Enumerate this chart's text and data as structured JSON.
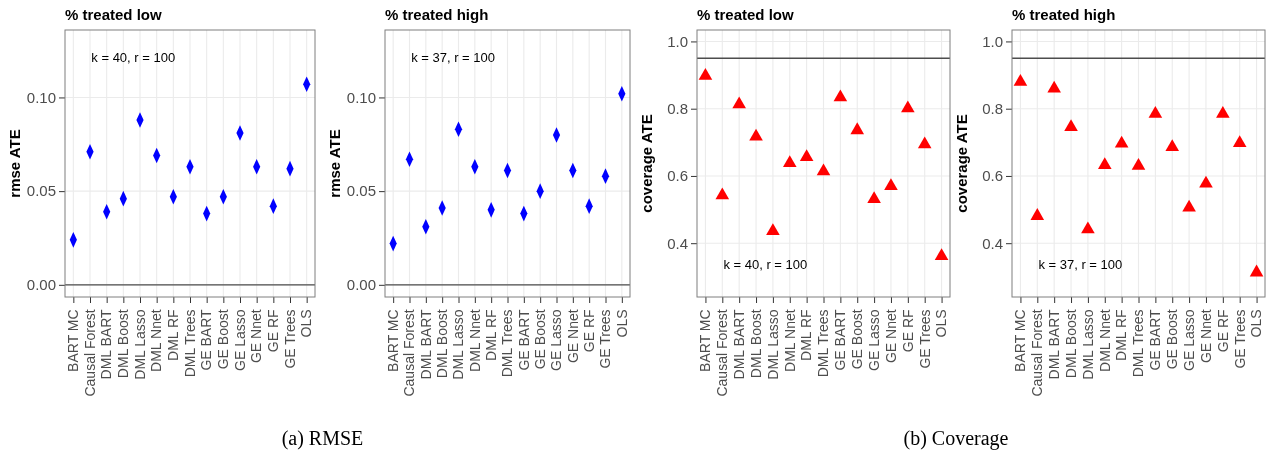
{
  "chart_data": [
    {
      "type": "scatter",
      "title": "% treated low",
      "ylabel": "rmse ATE",
      "categories": [
        "BART MC",
        "Causal Forest",
        "DML BART",
        "DML Boost",
        "DML Lasso",
        "DML Nnet",
        "DML RF",
        "DML Trees",
        "GE BART",
        "GE Boost",
        "GE Lasso",
        "GE Nnet",
        "GE RF",
        "GE Trees",
        "OLS"
      ],
      "series": [
        {
          "color": "#0000ff",
          "values": [
            0.024,
            0.071,
            0.039,
            0.046,
            0.088,
            0.069,
            0.047,
            0.063,
            0.038,
            0.047,
            0.081,
            0.063,
            0.042,
            0.062,
            0.107
          ]
        }
      ],
      "ylim": [
        -0.0065,
        0.136
      ],
      "yticks": [
        {
          "value": 0,
          "label": "0.00"
        },
        {
          "value": 0.05,
          "label": "0.05"
        },
        {
          "value": 0.1,
          "label": "0.10"
        }
      ],
      "grid": true,
      "marker": "diamond",
      "ref_lines": [
        {
          "axis": "y",
          "value": 0,
          "color": "#4d4d4d"
        }
      ],
      "annotations": [
        "k = 40, r = 100",
        "(a) RMSE"
      ]
    },
    {
      "type": "scatter",
      "title": "% treated high",
      "ylabel": "rmse ATE",
      "categories": [
        "BART MC",
        "Causal Forest",
        "DML BART",
        "DML Boost",
        "DML Lasso",
        "DML Nnet",
        "DML RF",
        "DML Trees",
        "GE BART",
        "GE Boost",
        "GE Lasso",
        "GE Nnet",
        "GE RF",
        "GE Trees",
        "OLS"
      ],
      "series": [
        {
          "color": "#0000ff",
          "values": [
            0.022,
            0.067,
            0.031,
            0.041,
            0.083,
            0.063,
            0.04,
            0.061,
            0.038,
            0.05,
            0.08,
            0.061,
            0.042,
            0.058,
            0.102
          ]
        }
      ],
      "ylim": [
        -0.0065,
        0.136
      ],
      "yticks": [
        {
          "value": 0,
          "label": "0.00"
        },
        {
          "value": 0.05,
          "label": "0.05"
        },
        {
          "value": 0.1,
          "label": "0.10"
        }
      ],
      "grid": true,
      "marker": "diamond",
      "ref_lines": [
        {
          "axis": "y",
          "value": 0,
          "color": "#4d4d4d"
        }
      ],
      "annotations": [
        "k = 37, r = 100"
      ]
    },
    {
      "type": "scatter",
      "title": "% treated low",
      "ylabel": "coverage ATE",
      "categories": [
        "BART MC",
        "Causal Forest",
        "DML BART",
        "DML Boost",
        "DML Lasso",
        "DML Nnet",
        "DML RF",
        "DML Trees",
        "GE BART",
        "GE Boost",
        "GE Lasso",
        "GE Nnet",
        "GE RF",
        "GE Trees",
        "OLS"
      ],
      "series": [
        {
          "color": "#ff0000",
          "values": [
            0.898,
            0.542,
            0.813,
            0.717,
            0.436,
            0.638,
            0.656,
            0.614,
            0.834,
            0.736,
            0.531,
            0.57,
            0.801,
            0.694,
            0.362
          ]
        }
      ],
      "ylim": [
        0.24,
        1.034
      ],
      "yticks": [
        0.4,
        0.6,
        0.8,
        {
          "value": 1,
          "label": "1.0"
        }
      ],
      "grid": true,
      "marker": "triangle",
      "ref_lines": [
        {
          "axis": "y",
          "value": 0.95,
          "color": "#4d4d4d"
        }
      ],
      "annotations": [
        "k = 40, r = 100",
        "(b) Coverage"
      ]
    },
    {
      "type": "scatter",
      "title": "% treated high",
      "ylabel": "coverage ATE",
      "categories": [
        "BART MC",
        "Causal Forest",
        "DML BART",
        "DML Boost",
        "DML Lasso",
        "DML Nnet",
        "DML RF",
        "DML Trees",
        "GE BART",
        "GE Boost",
        "GE Lasso",
        "GE Nnet",
        "GE RF",
        "GE Trees",
        "OLS"
      ],
      "series": [
        {
          "color": "#ff0000",
          "values": [
            0.88,
            0.481,
            0.86,
            0.745,
            0.441,
            0.632,
            0.696,
            0.63,
            0.785,
            0.686,
            0.506,
            0.577,
            0.785,
            0.698,
            0.313
          ]
        }
      ],
      "ylim": [
        0.24,
        1.034
      ],
      "yticks": [
        0.4,
        0.6,
        0.8,
        {
          "value": 1,
          "label": "1.0"
        }
      ],
      "grid": true,
      "marker": "triangle",
      "ref_lines": [
        {
          "axis": "y",
          "value": 0.95,
          "color": "#4d4d4d"
        }
      ],
      "annotations": [
        "k = 37, r = 100"
      ]
    }
  ]
}
